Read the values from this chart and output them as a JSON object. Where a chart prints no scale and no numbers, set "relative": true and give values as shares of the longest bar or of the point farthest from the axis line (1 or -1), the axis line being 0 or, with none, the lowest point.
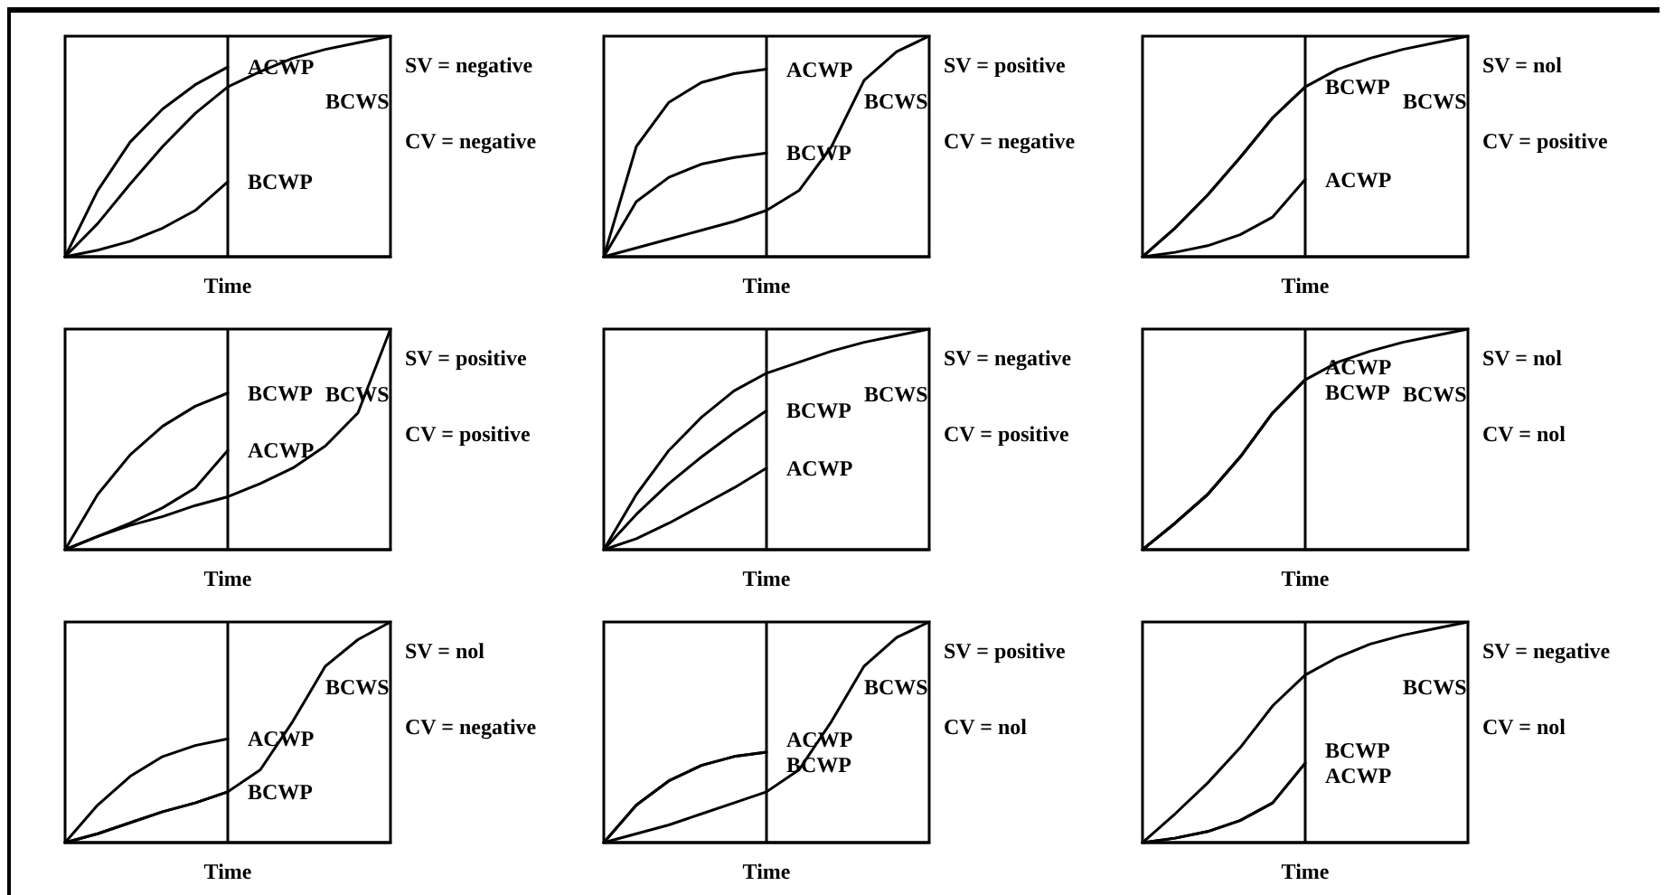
{
  "chart_data": [
    {
      "type": "line",
      "relative": true,
      "xlabel": "Time",
      "categories": [
        null,
        null,
        null,
        null,
        null,
        null,
        null,
        null,
        null,
        null,
        null
      ],
      "tick_labels": false,
      "marker": "none",
      "annotations": [
        "SV = negative",
        "CV = negative"
      ],
      "series": [
        {
          "name": "BCWS",
          "color": "#000000",
          "values": [
            0,
            0.15,
            0.33,
            0.5,
            0.65,
            0.77,
            0.84,
            0.9,
            0.94,
            0.97,
            1
          ]
        },
        {
          "name": "ACWP",
          "color": "#000000",
          "values": [
            0,
            0.3,
            0.52,
            0.67,
            0.78,
            0.86,
            null,
            null,
            null,
            null,
            null
          ]
        },
        {
          "name": "BCWP",
          "color": "#000000",
          "values": [
            0,
            0.03,
            0.07,
            0.13,
            0.21,
            0.34,
            null,
            null,
            null,
            null,
            null
          ]
        }
      ]
    },
    {
      "type": "line",
      "relative": true,
      "xlabel": "Time",
      "categories": [
        null,
        null,
        null,
        null,
        null,
        null,
        null,
        null,
        null,
        null,
        null
      ],
      "tick_labels": false,
      "marker": "none",
      "annotations": [
        "SV = positive",
        "CV = negative"
      ],
      "series": [
        {
          "name": "ACWP",
          "color": "#000000",
          "values": [
            0,
            0.5,
            0.7,
            0.79,
            0.83,
            0.85,
            null,
            null,
            null,
            null,
            null
          ]
        },
        {
          "name": "BCWP",
          "color": "#000000",
          "values": [
            0,
            0.25,
            0.36,
            0.42,
            0.45,
            0.47,
            null,
            null,
            null,
            null,
            null
          ]
        },
        {
          "name": "BCWS",
          "color": "#000000",
          "values": [
            0,
            0.04,
            0.08,
            0.12,
            0.16,
            0.21,
            0.3,
            0.5,
            0.8,
            0.93,
            1
          ]
        }
      ]
    },
    {
      "type": "line",
      "relative": true,
      "xlabel": "Time",
      "categories": [
        null,
        null,
        null,
        null,
        null,
        null,
        null,
        null,
        null,
        null,
        null
      ],
      "tick_labels": false,
      "marker": "none",
      "annotations": [
        "SV = nol",
        "CV = positive"
      ],
      "series": [
        {
          "name": "BCWS",
          "color": "#000000",
          "values": [
            0,
            0.13,
            0.28,
            0.45,
            0.63,
            0.77,
            0.85,
            0.9,
            0.94,
            0.97,
            1
          ]
        },
        {
          "name": "BCWP",
          "color": "#000000",
          "values": [
            0,
            0.13,
            0.28,
            0.45,
            0.63,
            0.77,
            null,
            null,
            null,
            null,
            null
          ]
        },
        {
          "name": "ACWP",
          "color": "#000000",
          "values": [
            0,
            0.02,
            0.05,
            0.1,
            0.18,
            0.35,
            null,
            null,
            null,
            null,
            null
          ]
        }
      ]
    },
    {
      "type": "line",
      "relative": true,
      "xlabel": "Time",
      "categories": [
        null,
        null,
        null,
        null,
        null,
        null,
        null,
        null,
        null,
        null,
        null
      ],
      "tick_labels": false,
      "marker": "none",
      "annotations": [
        "SV = positive",
        "CV = positive"
      ],
      "series": [
        {
          "name": "BCWP",
          "color": "#000000",
          "values": [
            0,
            0.25,
            0.43,
            0.56,
            0.65,
            0.71,
            null,
            null,
            null,
            null,
            null
          ]
        },
        {
          "name": "ACWP",
          "color": "#000000",
          "values": [
            0,
            0.06,
            0.12,
            0.19,
            0.28,
            0.45,
            null,
            null,
            null,
            null,
            null
          ]
        },
        {
          "name": "BCWS",
          "color": "#000000",
          "values": [
            0,
            0.06,
            0.11,
            0.15,
            0.2,
            0.24,
            0.3,
            0.37,
            0.47,
            0.62,
            1
          ]
        }
      ]
    },
    {
      "type": "line",
      "relative": true,
      "xlabel": "Time",
      "categories": [
        null,
        null,
        null,
        null,
        null,
        null,
        null,
        null,
        null,
        null,
        null
      ],
      "tick_labels": false,
      "marker": "none",
      "annotations": [
        "SV = negative",
        "CV = positive"
      ],
      "series": [
        {
          "name": "BCWS",
          "color": "#000000",
          "values": [
            0,
            0.25,
            0.45,
            0.6,
            0.72,
            0.8,
            0.85,
            0.9,
            0.94,
            0.97,
            1
          ]
        },
        {
          "name": "BCWP",
          "color": "#000000",
          "values": [
            0,
            0.16,
            0.3,
            0.42,
            0.53,
            0.63,
            null,
            null,
            null,
            null,
            null
          ]
        },
        {
          "name": "ACWP",
          "color": "#000000",
          "values": [
            0,
            0.05,
            0.12,
            0.2,
            0.28,
            0.37,
            null,
            null,
            null,
            null,
            null
          ]
        }
      ]
    },
    {
      "type": "line",
      "relative": true,
      "xlabel": "Time",
      "categories": [
        null,
        null,
        null,
        null,
        null,
        null,
        null,
        null,
        null,
        null,
        null
      ],
      "tick_labels": false,
      "marker": "none",
      "annotations": [
        "SV = nol",
        "CV = nol"
      ],
      "series": [
        {
          "name": "BCWS",
          "color": "#000000",
          "values": [
            0,
            0.12,
            0.25,
            0.42,
            0.62,
            0.77,
            0.85,
            0.9,
            0.94,
            0.97,
            1
          ]
        },
        {
          "name": "ACWP",
          "color": "#000000",
          "values": [
            0,
            0.12,
            0.25,
            0.42,
            0.62,
            0.77,
            null,
            null,
            null,
            null,
            null
          ]
        },
        {
          "name": "BCWP",
          "color": "#000000",
          "values": [
            0,
            0.12,
            0.25,
            0.42,
            0.62,
            0.77,
            null,
            null,
            null,
            null,
            null
          ]
        }
      ]
    },
    {
      "type": "line",
      "relative": true,
      "xlabel": "Time",
      "categories": [
        null,
        null,
        null,
        null,
        null,
        null,
        null,
        null,
        null,
        null,
        null
      ],
      "tick_labels": false,
      "marker": "none",
      "annotations": [
        "SV = nol",
        "CV = negative"
      ],
      "series": [
        {
          "name": "ACWP",
          "color": "#000000",
          "values": [
            0,
            0.17,
            0.3,
            0.39,
            0.44,
            0.47,
            null,
            null,
            null,
            null,
            null
          ]
        },
        {
          "name": "BCWS",
          "color": "#000000",
          "values": [
            0,
            0.04,
            0.09,
            0.14,
            0.18,
            0.23,
            0.33,
            0.55,
            0.8,
            0.92,
            1
          ]
        },
        {
          "name": "BCWP",
          "color": "#000000",
          "values": [
            0,
            0.04,
            0.09,
            0.14,
            0.18,
            0.23,
            null,
            null,
            null,
            null,
            null
          ]
        }
      ]
    },
    {
      "type": "line",
      "relative": true,
      "xlabel": "Time",
      "categories": [
        null,
        null,
        null,
        null,
        null,
        null,
        null,
        null,
        null,
        null,
        null
      ],
      "tick_labels": false,
      "marker": "none",
      "annotations": [
        "SV = positive",
        "CV = nol"
      ],
      "series": [
        {
          "name": "ACWP",
          "color": "#000000",
          "values": [
            0,
            0.17,
            0.28,
            0.35,
            0.39,
            0.41,
            null,
            null,
            null,
            null,
            null
          ]
        },
        {
          "name": "BCWP",
          "color": "#000000",
          "values": [
            0,
            0.17,
            0.28,
            0.35,
            0.39,
            0.41,
            null,
            null,
            null,
            null,
            null
          ]
        },
        {
          "name": "BCWS",
          "color": "#000000",
          "values": [
            0,
            0.04,
            0.08,
            0.13,
            0.18,
            0.23,
            0.33,
            0.55,
            0.8,
            0.93,
            1
          ]
        }
      ]
    },
    {
      "type": "line",
      "relative": true,
      "xlabel": "Time",
      "categories": [
        null,
        null,
        null,
        null,
        null,
        null,
        null,
        null,
        null,
        null,
        null
      ],
      "tick_labels": false,
      "marker": "none",
      "annotations": [
        "SV = negative",
        "CV = nol"
      ],
      "series": [
        {
          "name": "BCWS",
          "color": "#000000",
          "values": [
            0,
            0.13,
            0.27,
            0.43,
            0.62,
            0.76,
            0.84,
            0.9,
            0.94,
            0.97,
            1
          ]
        },
        {
          "name": "BCWP",
          "color": "#000000",
          "values": [
            0,
            0.02,
            0.05,
            0.1,
            0.18,
            0.36,
            null,
            null,
            null,
            null,
            null
          ]
        },
        {
          "name": "ACWP",
          "color": "#000000",
          "values": [
            0,
            0.02,
            0.05,
            0.1,
            0.18,
            0.36,
            null,
            null,
            null,
            null,
            null
          ]
        }
      ]
    }
  ]
}
